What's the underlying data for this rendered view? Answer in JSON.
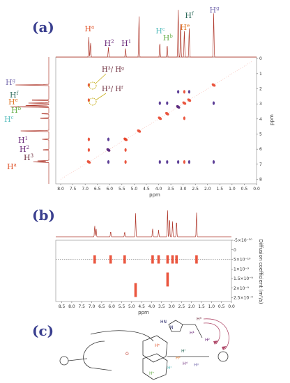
{
  "panel_labels": [
    "(a)",
    "(b)",
    "(c)"
  ],
  "colors": {
    "spectrum": "#b03a2e",
    "positive": "#e8442a",
    "negative": "#4b2a8c",
    "panel_label": "#3a3f8f",
    "box": "#999999"
  },
  "proton_labels": [
    {
      "base": "H",
      "sup": "a",
      "ppm": 6.85,
      "color": "#e0542a"
    },
    {
      "base": "H",
      "sup": "2",
      "ppm": 6.05,
      "color": "#6b2a7a"
    },
    {
      "base": "H",
      "sup": "1",
      "ppm": 5.35,
      "color": "#6b2a7a"
    },
    {
      "base": "H",
      "sup": "c",
      "ppm": 3.95,
      "color": "#5fc0c0"
    },
    {
      "base": "H",
      "sup": "b",
      "ppm": 3.65,
      "color": "#6ab04c"
    },
    {
      "base": "H",
      "sup": "e",
      "ppm": 2.95,
      "color": "#e0782a"
    },
    {
      "base": "H",
      "sup": "f",
      "ppm": 2.75,
      "color": "#2e6b5b"
    },
    {
      "base": "H",
      "sup": "g",
      "ppm": 1.75,
      "color": "#7a6fb0"
    }
  ],
  "left_labels": [
    {
      "base": "H",
      "sup": "g",
      "color": "#7a6fb0"
    },
    {
      "base": "H",
      "sup": "f",
      "color": "#2e6b5b"
    },
    {
      "base": "H",
      "sup": "e",
      "color": "#e0782a"
    },
    {
      "base": "H",
      "sup": "b",
      "color": "#6ab04c"
    },
    {
      "base": "H",
      "sup": "c",
      "color": "#5fc0c0"
    },
    {
      "base": "H",
      "sup": "1",
      "color": "#6b2a7a"
    },
    {
      "base": "H",
      "sup": "2",
      "color": "#6b2a7a"
    },
    {
      "base": "H",
      "sup": "3",
      "color": "#6b2a3a"
    },
    {
      "base": "H",
      "sup": "a",
      "color": "#e0542a"
    }
  ],
  "annotations": [
    {
      "text": "H³/ Hᵍ"
    },
    {
      "text": "H³/ Hᶠ"
    }
  ],
  "chart_data": [
    {
      "type": "scatter",
      "title": "",
      "xlabel": "ppm",
      "ylabel": "ppm",
      "xlim": [
        8.2,
        0.0
      ],
      "ylim": [
        8.3,
        -0.1
      ],
      "xticks": [
        "8.0",
        "7.5",
        "7.0",
        "6.5",
        "6.0",
        "5.5",
        "5.0",
        "4.5",
        "4.0",
        "3.5",
        "3.0",
        "2.5",
        "2.0",
        "1.5",
        "1.0",
        "0.5",
        "0.0"
      ],
      "yticks": [
        "0",
        "1",
        "2",
        "3",
        "4",
        "5",
        "6",
        "7",
        "8"
      ],
      "cross_peaks": [
        {
          "x": 6.85,
          "y": 6.85,
          "sign": "positive"
        },
        {
          "x": 6.05,
          "y": 6.05,
          "sign": "positive"
        },
        {
          "x": 5.35,
          "y": 5.35,
          "sign": "positive"
        },
        {
          "x": 4.8,
          "y": 4.8,
          "sign": "positive"
        },
        {
          "x": 3.95,
          "y": 3.95,
          "sign": "positive"
        },
        {
          "x": 3.65,
          "y": 3.65,
          "sign": "positive"
        },
        {
          "x": 3.2,
          "y": 3.2,
          "sign": "positive"
        },
        {
          "x": 2.95,
          "y": 2.95,
          "sign": "positive"
        },
        {
          "x": 2.75,
          "y": 2.75,
          "sign": "positive"
        },
        {
          "x": 1.75,
          "y": 1.75,
          "sign": "positive"
        },
        {
          "x": 6.85,
          "y": 1.75,
          "sign": "positive"
        },
        {
          "x": 6.85,
          "y": 2.75,
          "sign": "positive"
        },
        {
          "x": 6.85,
          "y": 5.35,
          "sign": "positive"
        },
        {
          "x": 6.85,
          "y": 6.05,
          "sign": "positive"
        },
        {
          "x": 6.05,
          "y": 5.35,
          "sign": "negative"
        },
        {
          "x": 6.05,
          "y": 6.05,
          "sign": "negative"
        },
        {
          "x": 6.05,
          "y": 6.85,
          "sign": "negative"
        },
        {
          "x": 5.35,
          "y": 5.35,
          "sign": "positive"
        },
        {
          "x": 5.35,
          "y": 6.05,
          "sign": "positive"
        },
        {
          "x": 5.35,
          "y": 6.85,
          "sign": "positive"
        },
        {
          "x": 3.95,
          "y": 2.95,
          "sign": "negative"
        },
        {
          "x": 3.95,
          "y": 6.85,
          "sign": "negative"
        },
        {
          "x": 3.65,
          "y": 2.95,
          "sign": "negative"
        },
        {
          "x": 3.65,
          "y": 6.85,
          "sign": "negative"
        },
        {
          "x": 3.2,
          "y": 2.2,
          "sign": "negative"
        },
        {
          "x": 3.2,
          "y": 3.2,
          "sign": "negative"
        },
        {
          "x": 3.2,
          "y": 6.85,
          "sign": "negative"
        },
        {
          "x": 2.95,
          "y": 2.2,
          "sign": "positive"
        },
        {
          "x": 2.95,
          "y": 3.95,
          "sign": "positive"
        },
        {
          "x": 2.95,
          "y": 6.85,
          "sign": "positive"
        },
        {
          "x": 2.75,
          "y": 2.2,
          "sign": "negative"
        },
        {
          "x": 2.75,
          "y": 6.85,
          "sign": "negative"
        },
        {
          "x": 1.75,
          "y": 2.95,
          "sign": "negative"
        },
        {
          "x": 1.75,
          "y": 6.85,
          "sign": "negative"
        }
      ]
    },
    {
      "type": "scatter",
      "title": "",
      "xlabel": "ppm",
      "ylabel": "Diffusion coefficient (m²/s)",
      "xlim": [
        8.8,
        0.0
      ],
      "ylim": [
        -5e-10,
        2.7e-09
      ],
      "xticks": [
        "8.5",
        "8.0",
        "7.5",
        "7.0",
        "6.5",
        "6.0",
        "5.5",
        "5.0",
        "4.5",
        "4.0",
        "3.5",
        "3.0",
        "2.5",
        "2.0",
        "1.5",
        "1.0",
        "0.5",
        "0.0"
      ],
      "yticks": [
        "-5×10⁻¹⁰",
        "0",
        "5×10⁻¹⁰",
        "1×10⁻⁹",
        "1.5×10⁻⁹",
        "2×10⁻⁹",
        "2.5×10⁻⁹"
      ],
      "reference_line": 5e-10,
      "bands": [
        {
          "x": 6.85,
          "d": 5e-10
        },
        {
          "x": 6.05,
          "d": 5e-10
        },
        {
          "x": 5.35,
          "d": 5e-10
        },
        {
          "x": 4.8,
          "d": 2.1e-09
        },
        {
          "x": 3.95,
          "d": 5e-10
        },
        {
          "x": 3.65,
          "d": 5e-10
        },
        {
          "x": 3.2,
          "d": 5e-10
        },
        {
          "x": 3.2,
          "d": 1.55e-09
        },
        {
          "x": 2.95,
          "d": 5e-10
        },
        {
          "x": 2.75,
          "d": 5e-10
        },
        {
          "x": 1.75,
          "d": 5e-10
        }
      ]
    }
  ],
  "spectrum_1d": {
    "peaks": [
      {
        "ppm": 6.85,
        "h": 0.42
      },
      {
        "ppm": 6.78,
        "h": 0.3
      },
      {
        "ppm": 6.05,
        "h": 0.2
      },
      {
        "ppm": 5.35,
        "h": 0.18
      },
      {
        "ppm": 4.8,
        "h": 0.85
      },
      {
        "ppm": 3.95,
        "h": 0.3
      },
      {
        "ppm": 3.65,
        "h": 0.25
      },
      {
        "ppm": 3.2,
        "h": 1.0
      },
      {
        "ppm": 3.1,
        "h": 0.7
      },
      {
        "ppm": 2.95,
        "h": 0.55
      },
      {
        "ppm": 2.75,
        "h": 0.6
      },
      {
        "ppm": 1.75,
        "h": 0.9
      }
    ]
  },
  "molecule_labels": [
    {
      "t": "H³",
      "c": "#6b2a3a"
    },
    {
      "t": "H²",
      "c": "#6b2a7a"
    },
    {
      "t": "H¹",
      "c": "#6b2a7a"
    },
    {
      "t": "Hᵍ",
      "c": "#7a6fb0"
    },
    {
      "t": "Hᶠ",
      "c": "#2e6b5b"
    },
    {
      "t": "Hᵉ",
      "c": "#e0782a"
    },
    {
      "t": "Hᵈ",
      "c": "#6b2a7a"
    },
    {
      "t": "Hᵃ",
      "c": "#e0542a"
    },
    {
      "t": "Hᵇ",
      "c": "#6ab04c"
    },
    {
      "t": "Hᶜ",
      "c": "#5fc0c0"
    },
    {
      "t": "HN",
      "c": "#2a2a6b"
    },
    {
      "t": "N",
      "c": "#2a2a6b"
    },
    {
      "t": "O",
      "c": "#c0392b"
    }
  ]
}
